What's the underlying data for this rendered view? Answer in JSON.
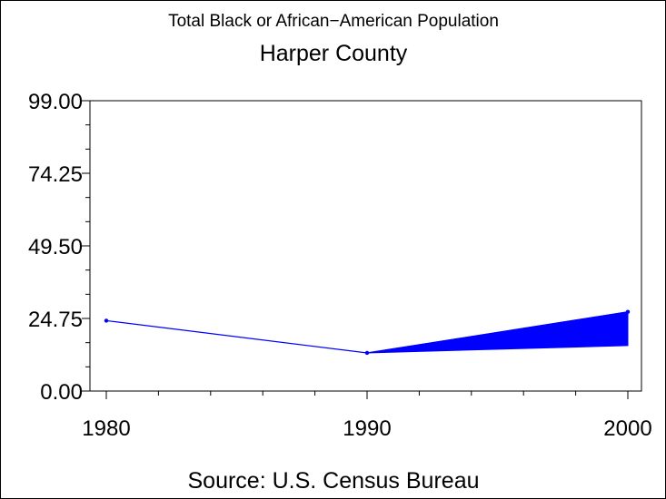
{
  "chart_data": {
    "type": "line",
    "title": "Total Black or African−American Population",
    "subtitle": "Harper County",
    "footnote": "Source: U.S. Census Bureau",
    "x": [
      1980,
      1990,
      2000
    ],
    "x_tick_labels": [
      "1980",
      "1990",
      "2000"
    ],
    "xlim": [
      1980,
      2000
    ],
    "ylim": [
      0,
      99
    ],
    "y_ticks": [
      0,
      24.75,
      49.5,
      74.25,
      99
    ],
    "y_tick_labels": [
      "0.00",
      "24.75",
      "49.50",
      "74.25",
      "99.00"
    ],
    "series": [
      {
        "values": [
          24,
          13,
          27
        ]
      }
    ],
    "band": {
      "x": [
        1990,
        2000
      ],
      "lower": [
        13,
        15.5
      ],
      "upper": [
        13,
        27
      ]
    },
    "colors": {
      "line": "#0000ff",
      "band": "#0000ff",
      "axis": "#000000"
    },
    "grid": false
  }
}
